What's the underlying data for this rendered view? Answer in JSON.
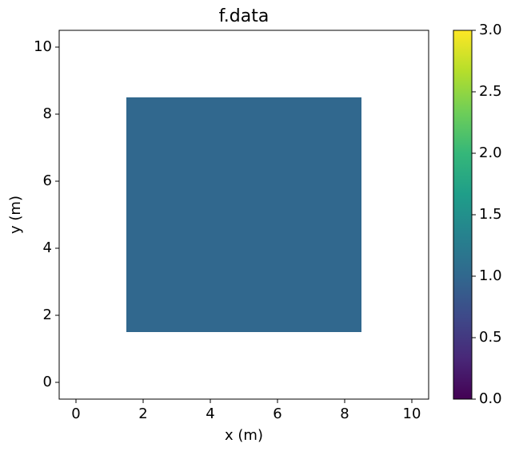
{
  "chart_data": {
    "type": "heatmap",
    "title": "f.data",
    "x_label": "x (m)",
    "y_label": "y (m)",
    "x_edges": [
      1.5,
      8.5
    ],
    "y_edges": [
      1.5,
      8.5
    ],
    "values": [
      [
        1.0
      ]
    ],
    "xlim": [
      -0.5,
      10.5
    ],
    "ylim": [
      -0.5,
      10.5
    ],
    "xticks": [
      0,
      2,
      4,
      6,
      8,
      10
    ],
    "yticks": [
      0,
      2,
      4,
      6,
      8,
      10
    ],
    "colormap": "viridis",
    "colorbar": {
      "lim": [
        0,
        3
      ],
      "ticks": [
        {
          "value": 0,
          "label": "0.0"
        },
        {
          "value": 0.5,
          "label": "0.5"
        },
        {
          "value": 1,
          "label": "1.0"
        },
        {
          "value": 1.5,
          "label": "1.5"
        },
        {
          "value": 2,
          "label": "2.0"
        },
        {
          "value": 2.5,
          "label": "2.5"
        },
        {
          "value": 3,
          "label": "3.0"
        }
      ]
    }
  }
}
